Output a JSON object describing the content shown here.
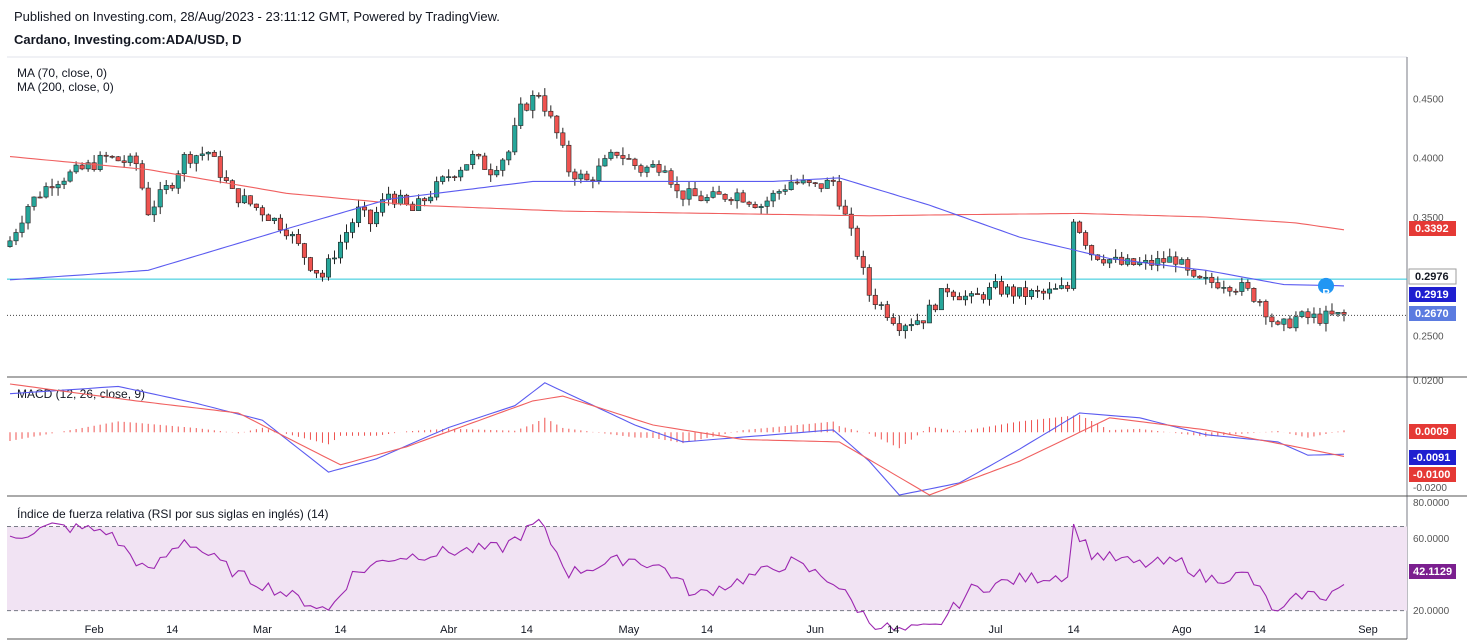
{
  "header": {
    "published": "Published on Investing.com, 28/Aug/2023 - 23:11:12 GMT, Powered by TradingView.",
    "symbol": "Cardano, Investing.com:ADA/USD, D"
  },
  "colors": {
    "up": "#26a69a",
    "down": "#ef5350",
    "ma70": "#5b5bf0",
    "ma200": "#f06060",
    "macd": "#5b5bf0",
    "signal": "#f06060",
    "hist": "#ef5350",
    "rsi": "#9c27b0",
    "rsi_band": "#f1e3f3",
    "level_line": "#26c6da",
    "last_price_bg": "#5b7be0",
    "ma200_badge": "#e53935",
    "ma70_badge": "#1f1fd0",
    "rsi_badge": "#7b1f8f"
  },
  "panes": {
    "price": {
      "legend": [
        "MA (70, close, 0)",
        "MA (200, close, 0)"
      ],
      "ticks": [
        0.45,
        0.4,
        0.35,
        0.25
      ],
      "tick_labels": [
        "0.4500",
        "0.4000",
        "0.3500",
        "0.2500"
      ],
      "badges": {
        "ma200": "0.3392",
        "level": "0.2976",
        "ma70": "0.2919",
        "last": "0.2670"
      },
      "marker": "P"
    },
    "macd": {
      "legend": "MACD (12, 26, close, 9)",
      "tick_labels": [
        "0.0200",
        "-0.0200"
      ],
      "badges": {
        "hist": "0.0009",
        "macd": "-0.0091",
        "signal": "-0.0100"
      }
    },
    "rsi": {
      "legend": "Índice de fuerza relativa (RSI por sus siglas en inglés) (14)",
      "tick_labels": [
        "80.0000",
        "60.0000",
        "20.0000"
      ],
      "badge": "42.1129"
    }
  },
  "x_axis": {
    "labels": [
      "Feb",
      "14",
      "Mar",
      "14",
      "Abr",
      "14",
      "May",
      "14",
      "Jun",
      "14",
      "Jul",
      "14",
      "Ago",
      "14",
      "Sep"
    ]
  },
  "chart_data": {
    "type": "candlestick",
    "title": "Cardano, Investing.com:ADA/USD, D",
    "x_range": [
      "2023-01-18",
      "2023-08-28"
    ],
    "ylim": [
      0.215,
      0.485
    ],
    "level_line": 0.2976,
    "last_close": 0.267,
    "close_anchors": [
      [
        "2023-01-18",
        0.33
      ],
      [
        "2023-01-21",
        0.36
      ],
      [
        "2023-01-25",
        0.38
      ],
      [
        "2023-01-30",
        0.39
      ],
      [
        "2023-02-03",
        0.4
      ],
      [
        "2023-02-08",
        0.395
      ],
      [
        "2023-02-10",
        0.355
      ],
      [
        "2023-02-14",
        0.38
      ],
      [
        "2023-02-16",
        0.4
      ],
      [
        "2023-02-20",
        0.405
      ],
      [
        "2023-02-24",
        0.37
      ],
      [
        "2023-03-01",
        0.355
      ],
      [
        "2023-03-05",
        0.34
      ],
      [
        "2023-03-09",
        0.31
      ],
      [
        "2023-03-11",
        0.3
      ],
      [
        "2023-03-13",
        0.32
      ],
      [
        "2023-03-17",
        0.355
      ],
      [
        "2023-03-19",
        0.345
      ],
      [
        "2023-03-22",
        0.37
      ],
      [
        "2023-03-26",
        0.355
      ],
      [
        "2023-03-29",
        0.37
      ],
      [
        "2023-04-01",
        0.385
      ],
      [
        "2023-04-05",
        0.4
      ],
      [
        "2023-04-08",
        0.39
      ],
      [
        "2023-04-11",
        0.405
      ],
      [
        "2023-04-13",
        0.44
      ],
      [
        "2023-04-16",
        0.455
      ],
      [
        "2023-04-19",
        0.42
      ],
      [
        "2023-04-21",
        0.39
      ],
      [
        "2023-04-24",
        0.38
      ],
      [
        "2023-04-29",
        0.405
      ],
      [
        "2023-05-03",
        0.39
      ],
      [
        "2023-05-07",
        0.395
      ],
      [
        "2023-05-09",
        0.37
      ],
      [
        "2023-05-14",
        0.365
      ],
      [
        "2023-05-19",
        0.37
      ],
      [
        "2023-05-23",
        0.36
      ],
      [
        "2023-05-28",
        0.38
      ],
      [
        "2023-06-01",
        0.375
      ],
      [
        "2023-06-04",
        0.38
      ],
      [
        "2023-06-06",
        0.35
      ],
      [
        "2023-06-08",
        0.32
      ],
      [
        "2023-06-10",
        0.285
      ],
      [
        "2023-06-15",
        0.26
      ],
      [
        "2023-06-19",
        0.265
      ],
      [
        "2023-06-23",
        0.29
      ],
      [
        "2023-06-27",
        0.28
      ],
      [
        "2023-07-01",
        0.29
      ],
      [
        "2023-07-05",
        0.285
      ],
      [
        "2023-07-09",
        0.285
      ],
      [
        "2023-07-13",
        0.29
      ],
      [
        "2023-07-14",
        0.35
      ],
      [
        "2023-07-17",
        0.32
      ],
      [
        "2023-07-22",
        0.31
      ],
      [
        "2023-07-26",
        0.31
      ],
      [
        "2023-07-31",
        0.315
      ],
      [
        "2023-08-03",
        0.295
      ],
      [
        "2023-08-08",
        0.295
      ],
      [
        "2023-08-11",
        0.29
      ],
      [
        "2023-08-14",
        0.28
      ],
      [
        "2023-08-17",
        0.255
      ],
      [
        "2023-08-20",
        0.265
      ],
      [
        "2023-08-24",
        0.265
      ],
      [
        "2023-08-28",
        0.267
      ]
    ],
    "ma70_anchors": [
      [
        "2023-01-18",
        0.297
      ],
      [
        "2023-02-10",
        0.305
      ],
      [
        "2023-03-05",
        0.34
      ],
      [
        "2023-03-22",
        0.365
      ],
      [
        "2023-04-15",
        0.38
      ],
      [
        "2023-05-05",
        0.38
      ],
      [
        "2023-05-25",
        0.38
      ],
      [
        "2023-06-05",
        0.383
      ],
      [
        "2023-06-20",
        0.36
      ],
      [
        "2023-07-05",
        0.333
      ],
      [
        "2023-07-20",
        0.315
      ],
      [
        "2023-08-05",
        0.305
      ],
      [
        "2023-08-18",
        0.293
      ],
      [
        "2023-08-28",
        0.2919
      ]
    ],
    "ma200_anchors": [
      [
        "2023-01-18",
        0.401
      ],
      [
        "2023-02-10",
        0.39
      ],
      [
        "2023-03-05",
        0.37
      ],
      [
        "2023-03-26",
        0.36
      ],
      [
        "2023-04-20",
        0.355
      ],
      [
        "2023-05-15",
        0.353
      ],
      [
        "2023-06-10",
        0.351
      ],
      [
        "2023-06-25",
        0.352
      ],
      [
        "2023-07-15",
        0.353
      ],
      [
        "2023-08-05",
        0.35
      ],
      [
        "2023-08-20",
        0.345
      ],
      [
        "2023-08-28",
        0.3392
      ]
    ],
    "macd": {
      "ylim": [
        -0.026,
        0.0225
      ],
      "macd_anchors": [
        [
          "2023-01-18",
          0.016
        ],
        [
          "2023-02-05",
          0.019
        ],
        [
          "2023-02-18",
          0.012
        ],
        [
          "2023-03-01",
          0.005
        ],
        [
          "2023-03-12",
          -0.0165
        ],
        [
          "2023-03-20",
          -0.011
        ],
        [
          "2023-04-01",
          0.002
        ],
        [
          "2023-04-12",
          0.011
        ],
        [
          "2023-04-17",
          0.0205
        ],
        [
          "2023-05-02",
          0.003
        ],
        [
          "2023-05-10",
          -0.004
        ],
        [
          "2023-05-25",
          -0.001
        ],
        [
          "2023-06-04",
          0.001
        ],
        [
          "2023-06-10",
          -0.012
        ],
        [
          "2023-06-15",
          -0.026
        ],
        [
          "2023-06-25",
          -0.021
        ],
        [
          "2023-07-05",
          -0.007
        ],
        [
          "2023-07-15",
          0.008
        ],
        [
          "2023-07-25",
          0.006
        ],
        [
          "2023-08-05",
          -0.001
        ],
        [
          "2023-08-17",
          -0.004
        ],
        [
          "2023-08-22",
          -0.0095
        ],
        [
          "2023-08-28",
          -0.0091
        ]
      ],
      "signal_anchors": [
        [
          "2023-01-18",
          0.02
        ],
        [
          "2023-02-08",
          0.013
        ],
        [
          "2023-02-25",
          0.008
        ],
        [
          "2023-03-14",
          -0.0135
        ],
        [
          "2023-03-25",
          -0.006
        ],
        [
          "2023-04-15",
          0.013
        ],
        [
          "2023-04-20",
          0.015
        ],
        [
          "2023-05-05",
          0.003
        ],
        [
          "2023-05-20",
          -0.003
        ],
        [
          "2023-06-05",
          -0.004
        ],
        [
          "2023-06-20",
          -0.026
        ],
        [
          "2023-07-05",
          -0.012
        ],
        [
          "2023-07-20",
          0.006
        ],
        [
          "2023-08-05",
          0.001
        ],
        [
          "2023-08-20",
          -0.006
        ],
        [
          "2023-08-28",
          -0.01
        ]
      ]
    },
    "rsi": {
      "ylim": [
        17,
        84
      ],
      "upper_band": 70,
      "lower_band": 30,
      "anchors": [
        [
          "2023-01-18",
          65
        ],
        [
          "2023-01-25",
          70
        ],
        [
          "2023-02-03",
          68
        ],
        [
          "2023-02-10",
          48
        ],
        [
          "2023-02-16",
          64
        ],
        [
          "2023-02-25",
          47
        ],
        [
          "2023-03-05",
          38
        ],
        [
          "2023-03-12",
          30
        ],
        [
          "2023-03-16",
          47
        ],
        [
          "2023-03-22",
          55
        ],
        [
          "2023-04-01",
          58
        ],
        [
          "2023-04-10",
          60
        ],
        [
          "2023-04-16",
          72
        ],
        [
          "2023-04-21",
          48
        ],
        [
          "2023-05-01",
          55
        ],
        [
          "2023-05-07",
          50
        ],
        [
          "2023-05-12",
          37
        ],
        [
          "2023-05-20",
          45
        ],
        [
          "2023-05-28",
          53
        ],
        [
          "2023-06-04",
          44
        ],
        [
          "2023-06-10",
          25
        ],
        [
          "2023-06-15",
          20
        ],
        [
          "2023-06-21",
          22
        ],
        [
          "2023-06-27",
          40
        ],
        [
          "2023-07-05",
          45
        ],
        [
          "2023-07-13",
          47
        ],
        [
          "2023-07-14",
          70
        ],
        [
          "2023-07-17",
          57
        ],
        [
          "2023-07-25",
          52
        ],
        [
          "2023-08-01",
          53
        ],
        [
          "2023-08-05",
          45
        ],
        [
          "2023-08-12",
          47
        ],
        [
          "2023-08-17",
          28
        ],
        [
          "2023-08-21",
          38
        ],
        [
          "2023-08-25",
          37
        ],
        [
          "2023-08-28",
          42.1129
        ]
      ]
    }
  }
}
